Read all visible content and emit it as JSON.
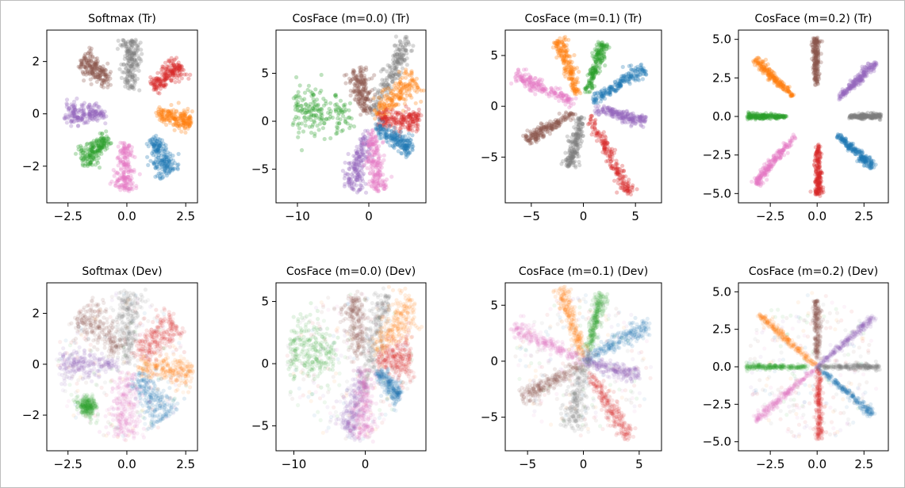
{
  "colors": {
    "blue": "#1f77b4",
    "orange": "#ff7f0e",
    "green": "#2ca02c",
    "red": "#d62728",
    "purple": "#9467bd",
    "brown": "#8c564b",
    "pink": "#e377c2",
    "gray": "#7f7f7f"
  },
  "chart_data": [
    {
      "type": "scatter",
      "title": "Softmax (Tr)",
      "xlim": [
        -3.4,
        3.0
      ],
      "ylim": [
        -3.4,
        3.2
      ],
      "xticks": [
        -2.5,
        0,
        2.5
      ],
      "xtick_labels": [
        "−2.5",
        "0.0",
        "2.5"
      ],
      "yticks": [
        -2,
        0,
        2
      ],
      "ytick_labels": [
        "−2",
        "0",
        "2"
      ],
      "spread": 0.18,
      "clusters": [
        {
          "color": "gray",
          "from": [
            0.15,
            0.9
          ],
          "to": [
            0.1,
            2.8
          ],
          "width": 0.22
        },
        {
          "color": "brown",
          "from": [
            -0.7,
            1.2
          ],
          "to": [
            -1.9,
            2.1
          ],
          "width": 0.25
        },
        {
          "color": "red",
          "from": [
            1.1,
            1.0
          ],
          "to": [
            2.3,
            1.9
          ],
          "width": 0.25
        },
        {
          "color": "purple",
          "from": [
            -0.9,
            0.0
          ],
          "to": [
            -2.6,
            0.0
          ],
          "width": 0.25
        },
        {
          "color": "orange",
          "from": [
            1.3,
            0.05
          ],
          "to": [
            2.7,
            -0.35
          ],
          "width": 0.22
        },
        {
          "color": "green",
          "from": [
            -0.8,
            -0.9
          ],
          "to": [
            -1.9,
            -1.8
          ],
          "width": 0.25
        },
        {
          "color": "blue",
          "from": [
            1.1,
            -0.9
          ],
          "to": [
            1.8,
            -2.3
          ],
          "width": 0.25
        },
        {
          "color": "pink",
          "from": [
            -0.05,
            -1.1
          ],
          "to": [
            -0.1,
            -2.9
          ],
          "width": 0.25
        }
      ]
    },
    {
      "type": "scatter",
      "title": "CosFace (m=0.0) (Tr)",
      "xlim": [
        -13,
        8
      ],
      "ylim": [
        -8.5,
        9.5
      ],
      "xticks": [
        -10,
        0
      ],
      "xtick_labels": [
        "−10",
        "0"
      ],
      "yticks": [
        -5,
        0,
        5
      ],
      "ytick_labels": [
        "−5",
        "0",
        "5"
      ],
      "spread": 0.55,
      "clusters": [
        {
          "color": "green",
          "from": [
            -2.0,
            0.5
          ],
          "to": [
            -10.5,
            1.3
          ],
          "width": 1.5
        },
        {
          "color": "brown",
          "from": [
            -0.3,
            0.8
          ],
          "to": [
            -1.8,
            5.6
          ],
          "width": 0.8
        },
        {
          "color": "gray",
          "from": [
            0.5,
            0.8
          ],
          "to": [
            5.5,
            8.5
          ],
          "width": 0.6
        },
        {
          "color": "orange",
          "from": [
            1.0,
            0.6
          ],
          "to": [
            6.5,
            4.5
          ],
          "width": 0.9
        },
        {
          "color": "red",
          "from": [
            1.2,
            0.2
          ],
          "to": [
            7.0,
            0.0
          ],
          "width": 0.7
        },
        {
          "color": "blue",
          "from": [
            1.0,
            -0.5
          ],
          "to": [
            6.2,
            -3.0
          ],
          "width": 0.6
        },
        {
          "color": "purple",
          "from": [
            -0.3,
            -0.8
          ],
          "to": [
            -2.5,
            -7.0
          ],
          "width": 0.8
        },
        {
          "color": "pink",
          "from": [
            0.3,
            -1.0
          ],
          "to": [
            1.4,
            -7.2
          ],
          "width": 0.7
        }
      ]
    },
    {
      "type": "scatter",
      "title": "CosFace (m=0.1) (Tr)",
      "xlim": [
        -7.5,
        7.5
      ],
      "ylim": [
        -9.5,
        7.5
      ],
      "xticks": [
        -5,
        0,
        5
      ],
      "xtick_labels": [
        "−5",
        "0",
        "5"
      ],
      "yticks": [
        -5,
        0,
        5
      ],
      "ytick_labels": [
        "−5",
        "0",
        "5"
      ],
      "spread": 0.3,
      "clusters": [
        {
          "color": "orange",
          "from": [
            -0.6,
            1.2
          ],
          "to": [
            -2.3,
            6.6
          ],
          "width": 0.35
        },
        {
          "color": "green",
          "from": [
            0.4,
            1.4
          ],
          "to": [
            1.9,
            6.2
          ],
          "width": 0.3
        },
        {
          "color": "blue",
          "from": [
            0.8,
            0.5
          ],
          "to": [
            5.9,
            3.7
          ],
          "width": 0.35
        },
        {
          "color": "pink",
          "from": [
            -0.8,
            0.3
          ],
          "to": [
            -6.6,
            3.1
          ],
          "width": 0.35
        },
        {
          "color": "purple",
          "from": [
            1.0,
            -0.2
          ],
          "to": [
            6.0,
            -1.5
          ],
          "width": 0.3
        },
        {
          "color": "brown",
          "from": [
            -0.8,
            -0.6
          ],
          "to": [
            -5.5,
            -3.4
          ],
          "width": 0.3
        },
        {
          "color": "gray",
          "from": [
            -0.2,
            -1.0
          ],
          "to": [
            -1.3,
            -6.0
          ],
          "width": 0.35
        },
        {
          "color": "red",
          "from": [
            0.5,
            -1.0
          ],
          "to": [
            4.5,
            -8.6
          ],
          "width": 0.35
        }
      ]
    },
    {
      "type": "scatter",
      "title": "CosFace (m=0.2) (Tr)",
      "xlim": [
        -4.2,
        3.8
      ],
      "ylim": [
        -5.6,
        5.6
      ],
      "xticks": [
        -2.5,
        0,
        2.5
      ],
      "xtick_labels": [
        "−2.5",
        "0.0",
        "2.5"
      ],
      "yticks": [
        -5,
        -2.5,
        0,
        2.5,
        5
      ],
      "ytick_labels": [
        "−5.0",
        "−2.5",
        "0.0",
        "2.5",
        "5.0"
      ],
      "spread": 0.1,
      "clusters": [
        {
          "color": "brown",
          "from": [
            -0.05,
            2.0
          ],
          "to": [
            -0.05,
            5.1
          ],
          "width": 0.12
        },
        {
          "color": "orange",
          "from": [
            -1.3,
            1.3
          ],
          "to": [
            -3.3,
            3.7
          ],
          "width": 0.14
        },
        {
          "color": "purple",
          "from": [
            1.1,
            1.1
          ],
          "to": [
            3.1,
            3.5
          ],
          "width": 0.14
        },
        {
          "color": "green",
          "from": [
            -1.6,
            0.0
          ],
          "to": [
            -3.7,
            0.0
          ],
          "width": 0.1
        },
        {
          "color": "gray",
          "from": [
            1.7,
            0.0
          ],
          "to": [
            3.4,
            0.0
          ],
          "width": 0.1
        },
        {
          "color": "pink",
          "from": [
            -1.2,
            -1.2
          ],
          "to": [
            -3.3,
            -4.4
          ],
          "width": 0.15
        },
        {
          "color": "blue",
          "from": [
            1.1,
            -1.2
          ],
          "to": [
            3.0,
            -3.3
          ],
          "width": 0.14
        },
        {
          "color": "red",
          "from": [
            0.05,
            -1.8
          ],
          "to": [
            0.05,
            -5.1
          ],
          "width": 0.12
        }
      ]
    },
    {
      "type": "scatter",
      "title": "Softmax (Dev)",
      "xlim": [
        -3.4,
        3.0
      ],
      "ylim": [
        -3.4,
        3.2
      ],
      "xticks": [
        -2.5,
        0,
        2.5
      ],
      "xtick_labels": [
        "−2.5",
        "0.0",
        "2.5"
      ],
      "yticks": [
        -2,
        0,
        2
      ],
      "ytick_labels": [
        "−2",
        "0",
        "2"
      ],
      "spread": 0.3,
      "clusters": [
        {
          "color": "gray",
          "from": [
            0.0,
            0.0
          ],
          "to": [
            0.1,
            2.8
          ],
          "width": 0.3
        },
        {
          "color": "brown",
          "from": [
            -0.3,
            0.5
          ],
          "to": [
            -1.9,
            2.1
          ],
          "width": 0.4
        },
        {
          "color": "red",
          "from": [
            0.4,
            0.3
          ],
          "to": [
            2.1,
            1.7
          ],
          "width": 0.4
        },
        {
          "color": "purple",
          "from": [
            -0.3,
            0.0
          ],
          "to": [
            -2.8,
            0.0
          ],
          "width": 0.3
        },
        {
          "color": "orange",
          "from": [
            0.5,
            0.0
          ],
          "to": [
            2.7,
            -0.4
          ],
          "width": 0.3
        },
        {
          "color": "green",
          "from": [
            -1.4,
            -1.4
          ],
          "to": [
            -1.9,
            -1.8
          ],
          "width": 0.25
        },
        {
          "color": "blue",
          "from": [
            0.4,
            -0.3
          ],
          "to": [
            1.7,
            -2.1
          ],
          "width": 0.4
        },
        {
          "color": "pink",
          "from": [
            0.0,
            -0.3
          ],
          "to": [
            -0.1,
            -2.9
          ],
          "width": 0.4
        }
      ]
    },
    {
      "type": "scatter",
      "title": "CosFace (m=0.0) (Dev)",
      "xlim": [
        -12.5,
        8.5
      ],
      "ylim": [
        -7.0,
        6.5
      ],
      "xticks": [
        -10,
        0
      ],
      "xtick_labels": [
        "−10",
        "0"
      ],
      "yticks": [
        -5,
        0,
        5
      ],
      "ytick_labels": [
        "−5",
        "0",
        "5"
      ],
      "spread": 0.7,
      "clusters": [
        {
          "color": "green",
          "from": [
            -4.0,
            0.5
          ],
          "to": [
            -10.5,
            1.5
          ],
          "width": 1.6
        },
        {
          "color": "brown",
          "from": [
            -0.5,
            0.5
          ],
          "to": [
            -2.0,
            5.3
          ],
          "width": 0.9
        },
        {
          "color": "gray",
          "from": [
            -0.5,
            -2.0
          ],
          "to": [
            3.0,
            5.5
          ],
          "width": 0.8
        },
        {
          "color": "orange",
          "from": [
            1.5,
            0.8
          ],
          "to": [
            6.5,
            5.0
          ],
          "width": 1.0
        },
        {
          "color": "red",
          "from": [
            1.5,
            0.2
          ],
          "to": [
            6.5,
            0.5
          ],
          "width": 0.9
        },
        {
          "color": "blue",
          "from": [
            1.5,
            -0.5
          ],
          "to": [
            4.8,
            -2.8
          ],
          "width": 0.5
        },
        {
          "color": "purple",
          "from": [
            -0.3,
            -0.8
          ],
          "to": [
            -2.5,
            -5.6
          ],
          "width": 0.9
        },
        {
          "color": "pink",
          "from": [
            0.0,
            -0.5
          ],
          "to": [
            -0.3,
            -6.0
          ],
          "width": 1.0
        }
      ]
    },
    {
      "type": "scatter",
      "title": "CosFace (m=0.1) (Dev)",
      "xlim": [
        -7.0,
        7.0
      ],
      "ylim": [
        -8.0,
        7.0
      ],
      "xticks": [
        -5,
        0,
        5
      ],
      "xtick_labels": [
        "−5",
        "0",
        "5"
      ],
      "yticks": [
        -5,
        0,
        5
      ],
      "ytick_labels": [
        "−5",
        "0",
        "5"
      ],
      "spread": 0.45,
      "clusters": [
        {
          "color": "orange",
          "from": [
            0.0,
            0.5
          ],
          "to": [
            -2.0,
            6.5
          ],
          "width": 0.4
        },
        {
          "color": "green",
          "from": [
            0.5,
            1.0
          ],
          "to": [
            1.7,
            6.0
          ],
          "width": 0.3
        },
        {
          "color": "blue",
          "from": [
            0.0,
            0.0
          ],
          "to": [
            5.8,
            3.2
          ],
          "width": 0.4
        },
        {
          "color": "pink",
          "from": [
            0.0,
            0.0
          ],
          "to": [
            -6.3,
            3.1
          ],
          "width": 0.4
        },
        {
          "color": "purple",
          "from": [
            0.0,
            0.0
          ],
          "to": [
            5.0,
            -1.3
          ],
          "width": 0.35
        },
        {
          "color": "brown",
          "from": [
            0.0,
            -0.3
          ],
          "to": [
            -5.5,
            -3.2
          ],
          "width": 0.4
        },
        {
          "color": "gray",
          "from": [
            0.5,
            1.0
          ],
          "to": [
            -1.3,
            -6.0
          ],
          "width": 0.6
        },
        {
          "color": "red",
          "from": [
            0.5,
            -1.0
          ],
          "to": [
            4.0,
            -6.8
          ],
          "width": 0.4
        }
      ]
    },
    {
      "type": "scatter",
      "title": "CosFace (m=0.2) (Dev)",
      "xlim": [
        -4.2,
        3.8
      ],
      "ylim": [
        -5.6,
        5.6
      ],
      "xticks": [
        -2.5,
        0,
        2.5
      ],
      "xtick_labels": [
        "−2.5",
        "0.0",
        "2.5"
      ],
      "yticks": [
        -5,
        -2.5,
        0,
        2.5,
        5
      ],
      "ytick_labels": [
        "−5.0",
        "−2.5",
        "0.0",
        "2.5",
        "5.0"
      ],
      "spread": 0.14,
      "clusters": [
        {
          "color": "brown",
          "from": [
            0.0,
            0.5
          ],
          "to": [
            0.0,
            4.4
          ],
          "width": 0.12
        },
        {
          "color": "orange",
          "from": [
            0.0,
            0.0
          ],
          "to": [
            -3.1,
            3.5
          ],
          "width": 0.12
        },
        {
          "color": "purple",
          "from": [
            0.0,
            0.0
          ],
          "to": [
            3.0,
            3.3
          ],
          "width": 0.12
        },
        {
          "color": "green",
          "from": [
            -0.5,
            0.0
          ],
          "to": [
            -3.8,
            0.0
          ],
          "width": 0.1
        },
        {
          "color": "gray",
          "from": [
            0.0,
            0.0
          ],
          "to": [
            3.3,
            0.0
          ],
          "width": 0.1
        },
        {
          "color": "pink",
          "from": [
            0.0,
            0.0
          ],
          "to": [
            -3.3,
            -3.6
          ],
          "width": 0.12
        },
        {
          "color": "blue",
          "from": [
            0.0,
            0.0
          ],
          "to": [
            3.0,
            -3.2
          ],
          "width": 0.12
        },
        {
          "color": "red",
          "from": [
            0.1,
            0.0
          ],
          "to": [
            0.1,
            -4.8
          ],
          "width": 0.12
        }
      ]
    }
  ]
}
